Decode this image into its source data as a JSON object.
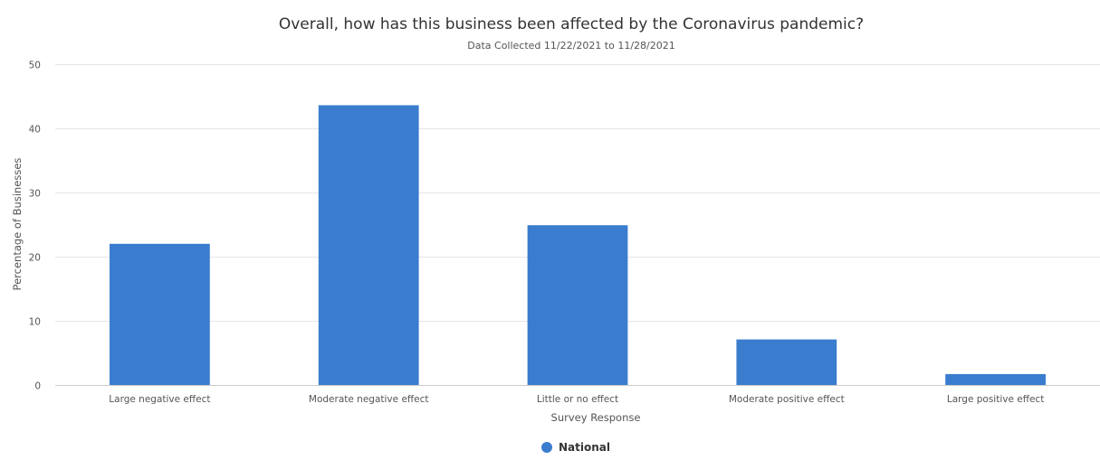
{
  "chart_data": {
    "type": "bar",
    "title": "Overall, how has this business been affected by the Coronavirus pandemic?",
    "subtitle": "Data Collected 11/22/2021 to 11/28/2021",
    "xlabel": "Survey Response",
    "ylabel": "Percentage of Businesses",
    "categories": [
      "Large negative effect",
      "Moderate negative effect",
      "Little or no effect",
      "Moderate positive effect",
      "Large positive effect"
    ],
    "series": [
      {
        "name": "National",
        "color": "#3a7dce",
        "values": [
          22.0,
          43.6,
          24.9,
          7.1,
          1.7
        ]
      }
    ],
    "ylim": [
      0,
      50
    ],
    "yticks": [
      0,
      10,
      20,
      30,
      40,
      50
    ],
    "grid": true,
    "legend_position": "bottom-center"
  }
}
